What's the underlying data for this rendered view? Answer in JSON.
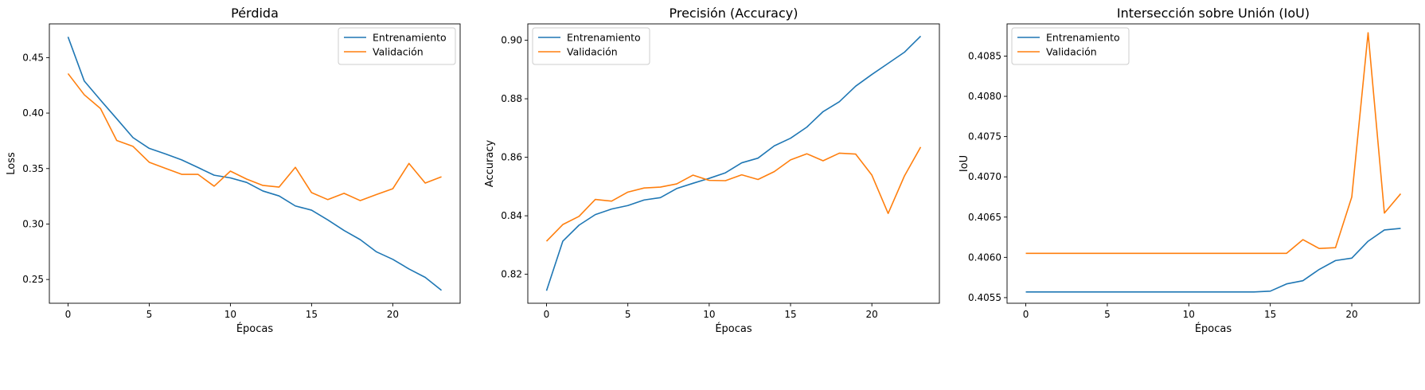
{
  "colors": {
    "train": "#1f77b4",
    "val": "#ff7f0e"
  },
  "chart_data": [
    {
      "type": "line",
      "title": "Pérdida",
      "xlabel": "Épocas",
      "ylabel": "Loss",
      "xlim": [
        -1.15,
        24.15
      ],
      "ylim": [
        0.2286,
        0.4804
      ],
      "xticks": [
        0,
        5,
        10,
        15,
        20
      ],
      "xtick_labels": [
        "0",
        "5",
        "10",
        "15",
        "20"
      ],
      "yticks": [
        0.25,
        0.3,
        0.35,
        0.4,
        0.45
      ],
      "ytick_labels": [
        "0.25",
        "0.30",
        "0.35",
        "0.40",
        "0.45"
      ],
      "legend": "top-right",
      "grid": false,
      "x": [
        0,
        1,
        2,
        3,
        4,
        5,
        6,
        7,
        8,
        9,
        10,
        11,
        12,
        13,
        14,
        15,
        16,
        17,
        18,
        19,
        20,
        21,
        22,
        23
      ],
      "series": [
        {
          "name": "Entrenamiento",
          "color_key": "train",
          "values": [
            0.4687,
            0.4289,
            0.4117,
            0.3949,
            0.3779,
            0.3682,
            0.3632,
            0.3578,
            0.351,
            0.344,
            0.3416,
            0.3375,
            0.3298,
            0.3253,
            0.3163,
            0.3125,
            0.3037,
            0.2942,
            0.2859,
            0.2749,
            0.2682,
            0.2595,
            0.2519,
            0.2403
          ]
        },
        {
          "name": "Validación",
          "color_key": "val",
          "values": [
            0.4356,
            0.4165,
            0.4041,
            0.3753,
            0.37,
            0.3557,
            0.3502,
            0.3448,
            0.3448,
            0.3341,
            0.3477,
            0.3405,
            0.3348,
            0.3333,
            0.3511,
            0.3283,
            0.322,
            0.3277,
            0.3211,
            0.3266,
            0.3318,
            0.3546,
            0.3369,
            0.3426
          ]
        }
      ]
    },
    {
      "type": "line",
      "title": "Precisión (Accuracy)",
      "xlabel": "Épocas",
      "ylabel": "Accuracy",
      "xlim": [
        -1.15,
        24.15
      ],
      "ylim": [
        0.8101,
        0.9056
      ],
      "xticks": [
        0,
        5,
        10,
        15,
        20
      ],
      "xtick_labels": [
        "0",
        "5",
        "10",
        "15",
        "20"
      ],
      "yticks": [
        0.82,
        0.84,
        0.86,
        0.88,
        0.9
      ],
      "ytick_labels": [
        "0.82",
        "0.84",
        "0.86",
        "0.88",
        "0.90"
      ],
      "legend": "top-left",
      "grid": false,
      "x": [
        0,
        1,
        2,
        3,
        4,
        5,
        6,
        7,
        8,
        9,
        10,
        11,
        12,
        13,
        14,
        15,
        16,
        17,
        18,
        19,
        20,
        21,
        22,
        23
      ],
      "series": [
        {
          "name": "Entrenamiento",
          "color_key": "train",
          "values": [
            0.8144,
            0.8313,
            0.8368,
            0.8404,
            0.8423,
            0.8435,
            0.8454,
            0.8462,
            0.8493,
            0.8511,
            0.8528,
            0.8547,
            0.8581,
            0.8597,
            0.8639,
            0.8665,
            0.8703,
            0.8756,
            0.879,
            0.8843,
            0.8883,
            0.8921,
            0.8959,
            0.9014
          ]
        },
        {
          "name": "Validación",
          "color_key": "val",
          "values": [
            0.8313,
            0.837,
            0.8398,
            0.8456,
            0.845,
            0.8481,
            0.8495,
            0.8498,
            0.8509,
            0.8539,
            0.8521,
            0.852,
            0.854,
            0.8524,
            0.8551,
            0.8591,
            0.8612,
            0.8588,
            0.8614,
            0.8611,
            0.8539,
            0.8408,
            0.8536,
            0.8635
          ]
        }
      ]
    },
    {
      "type": "line",
      "title": "Intersección sobre Unión (IoU)",
      "xlabel": "Épocas",
      "ylabel": "IoU",
      "xlim": [
        -1.15,
        24.15
      ],
      "ylim": [
        0.40543,
        0.4089
      ],
      "xticks": [
        0,
        5,
        10,
        15,
        20
      ],
      "xtick_labels": [
        "0",
        "5",
        "10",
        "15",
        "20"
      ],
      "yticks": [
        0.4055,
        0.406,
        0.4065,
        0.407,
        0.4075,
        0.408,
        0.4085
      ],
      "ytick_labels": [
        "0.4055",
        "0.4060",
        "0.4065",
        "0.4070",
        "0.4075",
        "0.4080",
        "0.4085"
      ],
      "legend": "top-left",
      "grid": false,
      "x": [
        0,
        1,
        2,
        3,
        4,
        5,
        6,
        7,
        8,
        9,
        10,
        11,
        12,
        13,
        14,
        15,
        16,
        17,
        18,
        19,
        20,
        21,
        22,
        23
      ],
      "series": [
        {
          "name": "Entrenamiento",
          "color_key": "train",
          "values": [
            0.40557,
            0.40557,
            0.40557,
            0.40557,
            0.40557,
            0.40557,
            0.40557,
            0.40557,
            0.40557,
            0.40557,
            0.40557,
            0.40557,
            0.40557,
            0.40557,
            0.40557,
            0.40558,
            0.40567,
            0.40571,
            0.40585,
            0.40596,
            0.40599,
            0.4062,
            0.40634,
            0.40636
          ]
        },
        {
          "name": "Validación",
          "color_key": "val",
          "values": [
            0.40605,
            0.40605,
            0.40605,
            0.40605,
            0.40605,
            0.40605,
            0.40605,
            0.40605,
            0.40605,
            0.40605,
            0.40605,
            0.40605,
            0.40605,
            0.40605,
            0.40605,
            0.40605,
            0.40605,
            0.40622,
            0.40611,
            0.40612,
            0.40675,
            0.40879,
            0.40655,
            0.40679
          ]
        }
      ]
    }
  ]
}
